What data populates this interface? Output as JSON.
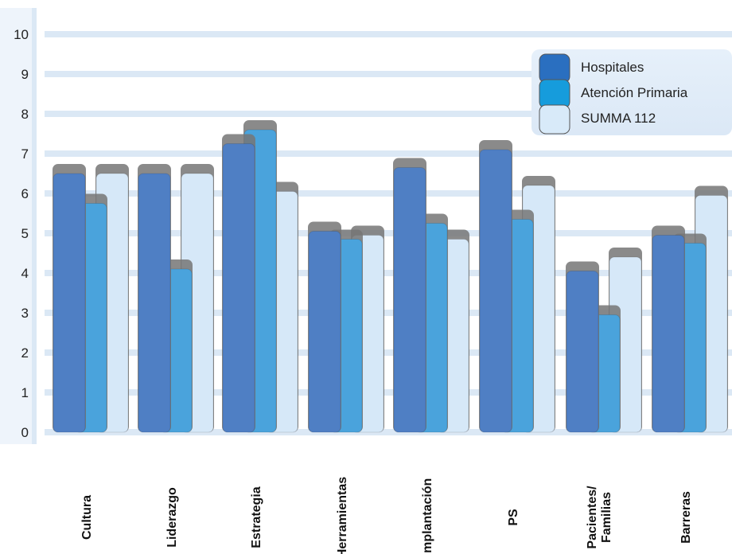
{
  "chart_data": {
    "type": "bar",
    "title": "",
    "xlabel": "",
    "ylabel": "",
    "ylim": [
      0,
      10
    ],
    "yticks": [
      "0",
      "1",
      "2",
      "3",
      "4",
      "5",
      "6",
      "7",
      "8",
      "9",
      "10"
    ],
    "categories": [
      "Cultura",
      "Liderazgo",
      "Estrategia",
      "Herramientas",
      "Implantación",
      "PS",
      "Pacientes/\nFamilias",
      "Barreras"
    ],
    "series": [
      {
        "name": "Hospitales",
        "color": "#4f7fc4",
        "values": [
          6.5,
          6.5,
          7.25,
          5.05,
          6.65,
          7.1,
          4.05,
          4.95
        ]
      },
      {
        "name": "Atención Primaria",
        "color": "#4aa3dc",
        "values": [
          5.75,
          4.1,
          7.6,
          4.85,
          5.25,
          5.35,
          2.95,
          4.75
        ]
      },
      {
        "name": "SUMMA 112",
        "color": "#d6e8f8",
        "values": [
          6.5,
          6.5,
          6.05,
          4.95,
          4.85,
          6.2,
          4.4,
          5.95
        ]
      }
    ],
    "legend": {
      "position": "top-right",
      "colors": [
        "#2a6fc0",
        "#169cdc",
        "#d8eaf9"
      ]
    },
    "grid": true,
    "style": {
      "axis_color": "#dbe8f5",
      "grid_color": "#dbe8f5",
      "shadow_color": "#767676"
    }
  }
}
